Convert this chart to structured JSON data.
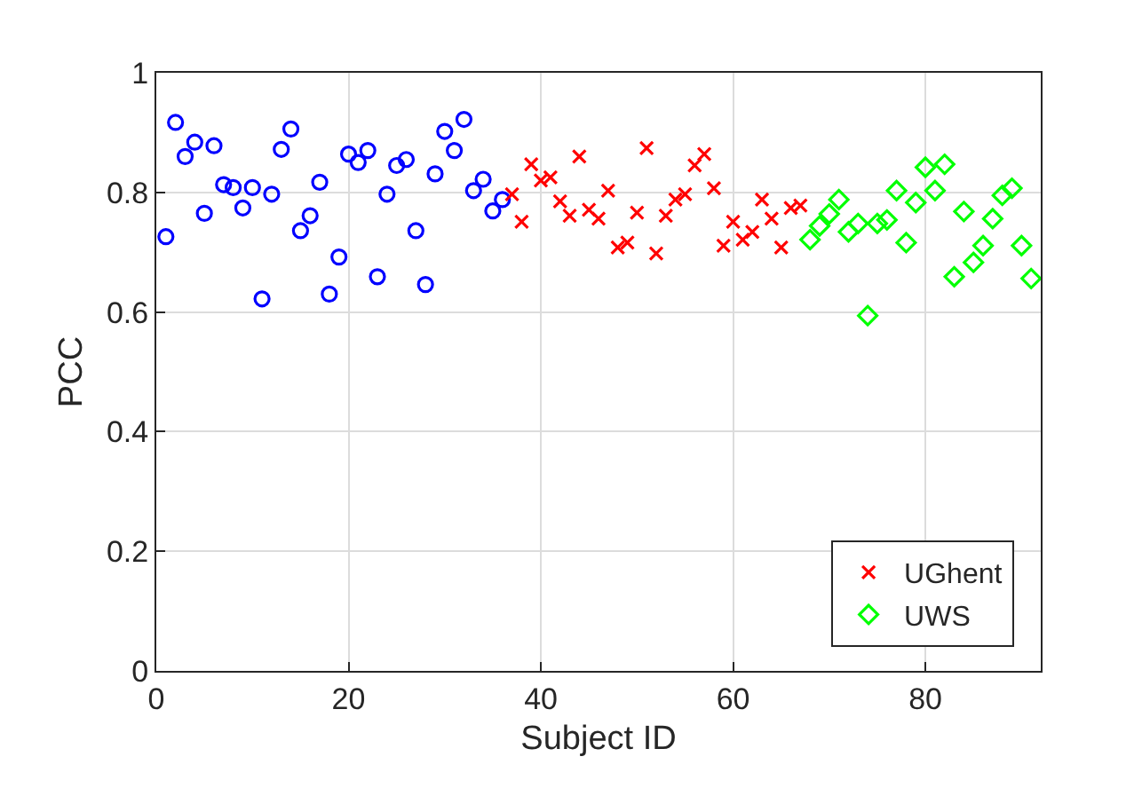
{
  "chart_data": {
    "type": "scatter",
    "xlabel": "Subject ID",
    "ylabel": "PCC",
    "xlim": [
      0,
      92
    ],
    "xticks": [
      0,
      20,
      40,
      60,
      80
    ],
    "ylim": [
      0,
      1
    ],
    "yticks": [
      0,
      0.2,
      0.4,
      0.6,
      0.8,
      1
    ],
    "grid": true,
    "legend": "bottom right",
    "series": [
      {
        "color": "#0000ff",
        "marker": "circle",
        "x": [
          1,
          2,
          3,
          4,
          5,
          6,
          7,
          8,
          9,
          10,
          11,
          12,
          13,
          14,
          15,
          16,
          17,
          18,
          19,
          20,
          21,
          22,
          23,
          24,
          25,
          26,
          27,
          28,
          29,
          30,
          31,
          32,
          33,
          34,
          35,
          36
        ],
        "values": [
          0.726,
          0.917,
          0.86,
          0.884,
          0.765,
          0.878,
          0.813,
          0.808,
          0.774,
          0.808,
          0.622,
          0.797,
          0.872,
          0.906,
          0.736,
          0.761,
          0.817,
          0.63,
          0.692,
          0.864,
          0.85,
          0.87,
          0.659,
          0.797,
          0.845,
          0.855,
          0.736,
          0.646,
          0.831,
          0.902,
          0.87,
          0.922,
          0.803,
          0.822,
          0.769,
          0.788
        ]
      },
      {
        "name": "UGhent",
        "color": "#ff0000",
        "marker": "cross",
        "x": [
          37,
          38,
          39,
          40,
          41,
          42,
          43,
          44,
          45,
          46,
          47,
          48,
          49,
          50,
          51,
          52,
          53,
          54,
          55,
          56,
          57,
          58,
          59,
          60,
          61,
          62,
          63,
          64,
          65,
          66,
          67
        ],
        "values": [
          0.797,
          0.751,
          0.847,
          0.82,
          0.825,
          0.785,
          0.761,
          0.86,
          0.771,
          0.756,
          0.803,
          0.708,
          0.716,
          0.766,
          0.874,
          0.698,
          0.761,
          0.788,
          0.797,
          0.845,
          0.864,
          0.807,
          0.711,
          0.751,
          0.721,
          0.734,
          0.788,
          0.756,
          0.708,
          0.774,
          0.778
        ]
      },
      {
        "name": "UWS",
        "color": "#00ff00",
        "marker": "diamond",
        "x": [
          68,
          69,
          70,
          71,
          72,
          73,
          74,
          75,
          76,
          77,
          78,
          79,
          80,
          81,
          82,
          83,
          84,
          85,
          86,
          87,
          88,
          89,
          90,
          91
        ],
        "values": [
          0.721,
          0.744,
          0.764,
          0.788,
          0.734,
          0.748,
          0.594,
          0.748,
          0.754,
          0.803,
          0.716,
          0.783,
          0.842,
          0.803,
          0.847,
          0.659,
          0.768,
          0.683,
          0.711,
          0.756,
          0.795,
          0.807,
          0.711,
          0.656
        ]
      }
    ]
  }
}
